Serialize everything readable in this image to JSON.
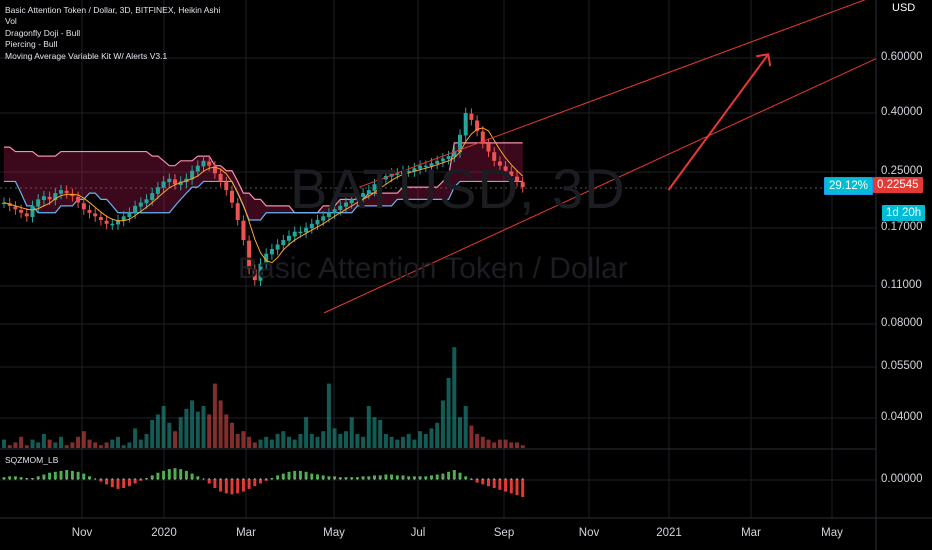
{
  "legend": {
    "title": "Basic Attention Token / Dollar, 3D, BITFINEX, Heikin Ashi",
    "lines": [
      "Vol",
      "Dragonfly Doji - Bull",
      "Piercing - Bull",
      "Moving Average Variable Kit W/ Alerts V3.1"
    ]
  },
  "watermark": {
    "symbol": "BATUSD, 3D",
    "description": "Basic Attention Token / Dollar"
  },
  "currency_label": "USD",
  "price_axis": {
    "ticks": [
      "0.60000",
      "0.40000",
      "0.25000",
      "0.17000",
      "0.11000",
      "0.08000",
      "0.05500",
      "0.04000",
      "0.00000"
    ]
  },
  "time_axis": {
    "ticks": [
      "Nov",
      "2020",
      "Mar",
      "May",
      "Jul",
      "Sep",
      "Nov",
      "2021",
      "Mar",
      "May"
    ]
  },
  "badges": {
    "change": "29.12%",
    "last_price": "0.22545",
    "countdown": "1d 20h"
  },
  "indicator_label": "SQZMOM_LB",
  "colors": {
    "up": "#26a69a",
    "down": "#ef5350",
    "cloud_upper": "#f48fb1",
    "cloud_lower": "#64b5f6",
    "ma": "#ffa726",
    "channel": "#e53935",
    "grid": "#1c1f26"
  },
  "chart_data": {
    "type": "candlestick",
    "symbol": "BATUSD",
    "timeframe": "3D",
    "exchange": "BITFINEX",
    "scale": "log",
    "last_price": 0.22545,
    "close": [
      0.205,
      0.2,
      0.195,
      0.19,
      0.185,
      0.2,
      0.21,
      0.215,
      0.21,
      0.22,
      0.225,
      0.22,
      0.215,
      0.205,
      0.195,
      0.19,
      0.185,
      0.18,
      0.175,
      0.175,
      0.18,
      0.185,
      0.19,
      0.2,
      0.205,
      0.21,
      0.22,
      0.23,
      0.24,
      0.245,
      0.235,
      0.24,
      0.245,
      0.26,
      0.27,
      0.28,
      0.27,
      0.255,
      0.24,
      0.225,
      0.205,
      0.18,
      0.155,
      0.125,
      0.115,
      0.13,
      0.14,
      0.145,
      0.15,
      0.155,
      0.16,
      0.165,
      0.165,
      0.17,
      0.175,
      0.18,
      0.185,
      0.19,
      0.195,
      0.2,
      0.205,
      0.21,
      0.215,
      0.22,
      0.225,
      0.235,
      0.245,
      0.25,
      0.255,
      0.255,
      0.26,
      0.26,
      0.265,
      0.27,
      0.27,
      0.275,
      0.28,
      0.285,
      0.29,
      0.3,
      0.34,
      0.4,
      0.38,
      0.35,
      0.32,
      0.3,
      0.28,
      0.27,
      0.26,
      0.25,
      0.24,
      0.23
    ],
    "volume": [
      0.038,
      0.036,
      0.037,
      0.039,
      0.036,
      0.038,
      0.037,
      0.04,
      0.038,
      0.037,
      0.039,
      0.036,
      0.037,
      0.039,
      0.041,
      0.038,
      0.037,
      0.036,
      0.037,
      0.038,
      0.039,
      0.036,
      0.037,
      0.042,
      0.038,
      0.04,
      0.045,
      0.047,
      0.05,
      0.044,
      0.041,
      0.046,
      0.049,
      0.052,
      0.048,
      0.05,
      0.047,
      0.058,
      0.052,
      0.047,
      0.044,
      0.04,
      0.041,
      0.039,
      0.037,
      0.038,
      0.039,
      0.038,
      0.04,
      0.041,
      0.039,
      0.038,
      0.04,
      0.046,
      0.04,
      0.039,
      0.041,
      0.058,
      0.042,
      0.04,
      0.041,
      0.046,
      0.04,
      0.039,
      0.05,
      0.046,
      0.045,
      0.04,
      0.039,
      0.038,
      0.039,
      0.04,
      0.038,
      0.041,
      0.04,
      0.042,
      0.044,
      0.052,
      0.06,
      0.071,
      0.046,
      0.05,
      0.043,
      0.04,
      0.039,
      0.038,
      0.037,
      0.038,
      0.038,
      0.037,
      0.037,
      0.036
    ],
    "squeeze_momentum": [
      0.2,
      0.3,
      0.3,
      0.2,
      0.1,
      0.1,
      0.3,
      0.5,
      0.7,
      0.8,
      0.9,
      1.0,
      0.9,
      0.8,
      0.6,
      0.3,
      0.0,
      -0.3,
      -0.6,
      -0.9,
      -1.1,
      -1.0,
      -0.8,
      -0.5,
      -0.2,
      0.1,
      0.4,
      0.7,
      0.9,
      1.1,
      1.2,
      1.1,
      0.9,
      0.6,
      0.3,
      0.0,
      -0.5,
      -1.0,
      -1.4,
      -1.6,
      -1.7,
      -1.6,
      -1.4,
      -1.1,
      -0.8,
      -0.5,
      -0.2,
      0.1,
      0.4,
      0.6,
      0.8,
      0.9,
      0.9,
      0.8,
      0.6,
      0.5,
      0.4,
      0.3,
      0.3,
      0.2,
      0.2,
      0.2,
      0.2,
      0.3,
      0.3,
      0.4,
      0.4,
      0.5,
      0.5,
      0.4,
      0.4,
      0.3,
      0.3,
      0.3,
      0.3,
      0.4,
      0.5,
      0.6,
      0.8,
      1.0,
      0.7,
      0.3,
      -0.1,
      -0.4,
      -0.6,
      -0.8,
      -1.0,
      -1.2,
      -1.4,
      -1.6,
      -1.8,
      -2.0
    ],
    "ichimoku_cloud": {
      "upper": [
        0.31,
        0.31,
        0.3,
        0.3,
        0.3,
        0.3,
        0.29,
        0.29,
        0.29,
        0.29,
        0.3,
        0.3,
        0.3,
        0.3,
        0.3,
        0.3,
        0.3,
        0.3,
        0.3,
        0.3,
        0.3,
        0.3,
        0.3,
        0.3,
        0.3,
        0.3,
        0.29,
        0.29,
        0.28,
        0.27,
        0.27,
        0.28,
        0.28,
        0.28,
        0.29,
        0.29,
        0.29,
        0.27,
        0.27,
        0.26,
        0.26,
        0.24,
        0.22,
        0.22,
        0.21,
        0.21,
        0.2,
        0.2,
        0.2,
        0.2,
        0.2,
        0.19,
        0.19,
        0.19,
        0.19,
        0.19,
        0.2,
        0.2,
        0.2,
        0.21,
        0.21,
        0.21,
        0.21,
        0.21,
        0.22,
        0.22,
        0.22,
        0.22,
        0.22,
        0.22,
        0.23,
        0.23,
        0.23,
        0.23,
        0.23,
        0.23,
        0.23,
        0.24,
        0.25,
        0.32,
        0.32,
        0.32,
        0.32,
        0.32,
        0.32,
        0.32,
        0.32,
        0.32,
        0.32,
        0.32,
        0.32,
        0.32
      ],
      "lower": [
        0.24,
        0.24,
        0.24,
        0.22,
        0.2,
        0.2,
        0.19,
        0.19,
        0.19,
        0.19,
        0.2,
        0.2,
        0.2,
        0.21,
        0.21,
        0.22,
        0.22,
        0.21,
        0.21,
        0.2,
        0.19,
        0.19,
        0.19,
        0.19,
        0.19,
        0.19,
        0.19,
        0.19,
        0.19,
        0.19,
        0.2,
        0.21,
        0.22,
        0.23,
        0.23,
        0.24,
        0.24,
        0.24,
        0.24,
        0.24,
        0.24,
        0.22,
        0.2,
        0.18,
        0.18,
        0.18,
        0.19,
        0.19,
        0.19,
        0.19,
        0.19,
        0.19,
        0.19,
        0.19,
        0.19,
        0.19,
        0.19,
        0.19,
        0.19,
        0.19,
        0.19,
        0.19,
        0.2,
        0.2,
        0.2,
        0.2,
        0.2,
        0.2,
        0.2,
        0.21,
        0.21,
        0.21,
        0.21,
        0.21,
        0.21,
        0.21,
        0.21,
        0.21,
        0.21,
        0.23,
        0.24,
        0.24,
        0.24,
        0.24,
        0.24,
        0.24,
        0.24,
        0.24,
        0.24,
        0.24,
        0.24,
        0.24
      ]
    },
    "channel": {
      "upper": [
        {
          "t": 0.41,
          "p": 0.23
        },
        {
          "t": 1.0,
          "p": 0.96
        }
      ],
      "lower": [
        {
          "t": 0.37,
          "p": 0.09
        },
        {
          "t": 1.0,
          "p": 0.6
        }
      ],
      "projection_arrow": [
        {
          "t": 0.763,
          "p": 0.225
        },
        {
          "t": 0.877,
          "p": 0.62
        }
      ]
    }
  }
}
